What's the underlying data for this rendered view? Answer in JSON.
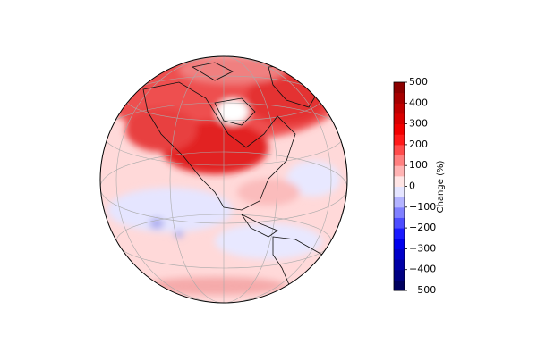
{
  "colorbar": {
    "label": "Change (%)",
    "lim": [
      -500,
      500
    ],
    "ticks": [
      {
        "value": -500,
        "label": "−500"
      },
      {
        "value": -400,
        "label": "−400"
      },
      {
        "value": -300,
        "label": "−300"
      },
      {
        "value": -200,
        "label": "−200"
      },
      {
        "value": -100,
        "label": "−100"
      },
      0,
      100,
      200,
      300,
      400,
      500
    ]
  }
}
